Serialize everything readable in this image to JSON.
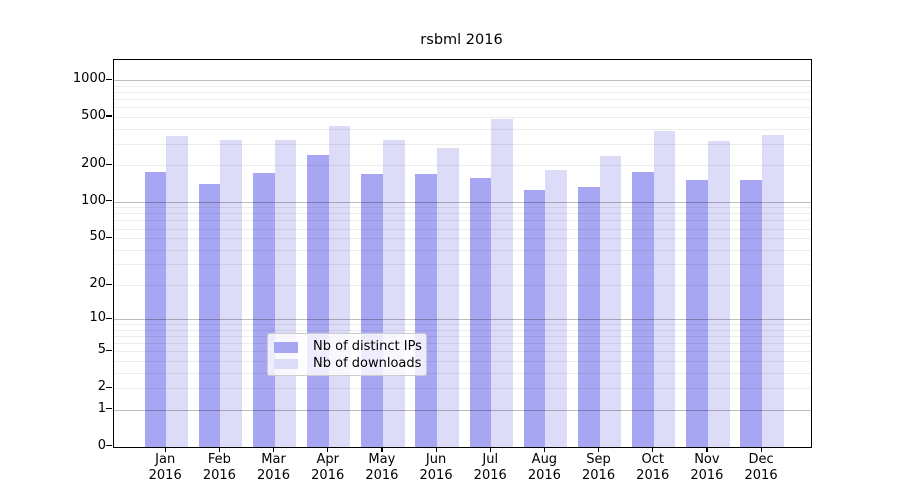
{
  "title": "rsbml 2016",
  "legend": {
    "items": [
      {
        "label": "Nb of distinct IPs",
        "color": "#a6a6f2"
      },
      {
        "label": "Nb of downloads",
        "color": "#dcdcf8"
      }
    ]
  },
  "chart_data": {
    "type": "bar",
    "title": "rsbml 2016",
    "categories": [
      "Jan",
      "Feb",
      "Mar",
      "Apr",
      "May",
      "Jun",
      "Jul",
      "Aug",
      "Sep",
      "Oct",
      "Nov",
      "Dec"
    ],
    "category_year": "2016",
    "series": [
      {
        "name": "Nb of distinct IPs",
        "color": "#a6a6f2",
        "values": [
          176,
          140,
          172,
          245,
          170,
          168,
          157,
          125,
          132,
          176,
          150,
          150
        ]
      },
      {
        "name": "Nb of downloads",
        "color": "#dcdcf8",
        "values": [
          345,
          323,
          323,
          424,
          321,
          278,
          478,
          182,
          240,
          381,
          319,
          353
        ]
      }
    ],
    "yscale": "log10(1+y)",
    "y_tick_values": [
      0,
      1,
      2,
      5,
      10,
      20,
      50,
      100,
      200,
      500,
      1000
    ],
    "ylim": [
      0,
      1450
    ],
    "grid": {
      "major_at": [
        1,
        10,
        100,
        1000
      ],
      "minor_at": "2-9 per decade"
    },
    "legend_position": "inside lower-center",
    "xlabel": "",
    "ylabel": ""
  }
}
